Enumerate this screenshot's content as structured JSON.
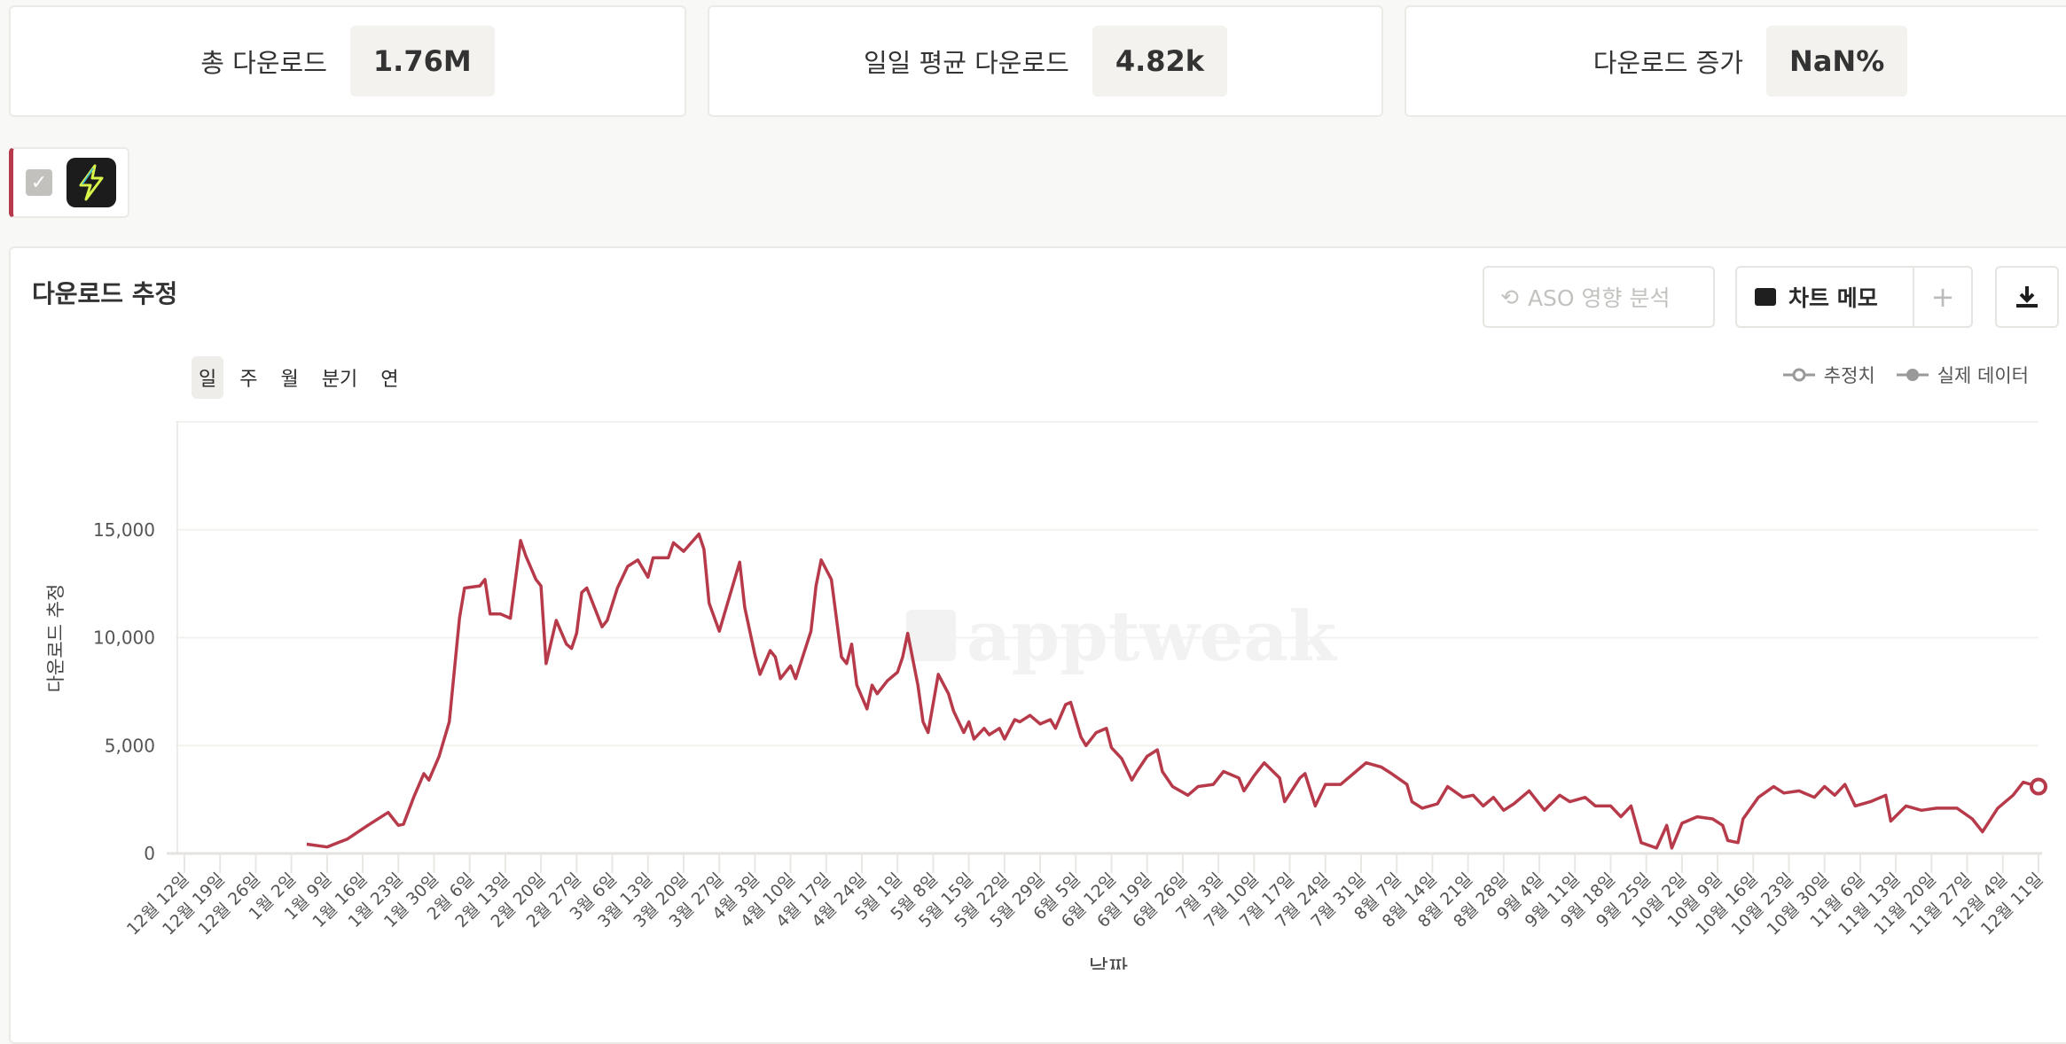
{
  "stats": [
    {
      "label": "총 다운로드",
      "value": "1.76M"
    },
    {
      "label": "일일 평균 다운로드",
      "value": "4.82k"
    },
    {
      "label": "다운로드 증가",
      "value": "NaN%"
    }
  ],
  "app_selector": {
    "checked": true,
    "icon": "lightning-bolt-app-icon",
    "accent": "#b73a4a"
  },
  "chart_card": {
    "title": "다운로드 추정",
    "aso_button": "ASO 영향 분석",
    "memo_button": "차트 메모",
    "add_label": "+",
    "download_icon": "download-icon"
  },
  "period_tabs": [
    {
      "label": "일",
      "active": true
    },
    {
      "label": "주"
    },
    {
      "label": "월"
    },
    {
      "label": "분기"
    },
    {
      "label": "연"
    }
  ],
  "legend": {
    "estimate": "추정치",
    "actual": "실제 데이터"
  },
  "watermark": "apptweak",
  "chart_data": {
    "type": "line",
    "xlabel": "날짜",
    "ylabel": "다운로드 추정",
    "ylim": [
      0,
      20000
    ],
    "yticks": [
      0,
      5000,
      10000,
      15000
    ],
    "ytick_labels": [
      "0",
      "5,000",
      "10,000",
      "15,000"
    ],
    "grid": true,
    "legend_position": "top-right",
    "color": "#b73a4a",
    "xlim": [
      "12-12",
      "12-11"
    ],
    "xtick_labels": [
      "12월 12일",
      "12월 19일",
      "12월 26일",
      "1월 2일",
      "1월 9일",
      "1월 16일",
      "1월 23일",
      "1월 30일",
      "2월 6일",
      "2월 13일",
      "2월 20일",
      "2월 27일",
      "3월 6일",
      "3월 13일",
      "3월 20일",
      "3월 27일",
      "4월 3일",
      "4월 10일",
      "4월 17일",
      "4월 24일",
      "5월 1일",
      "5월 8일",
      "5월 15일",
      "5월 22일",
      "5월 29일",
      "6월 5일",
      "6월 12일",
      "6월 19일",
      "6월 26일",
      "7월 3일",
      "7월 10일",
      "7월 17일",
      "7월 24일",
      "7월 31일",
      "8월 7일",
      "8월 14일",
      "8월 21일",
      "8월 28일",
      "9월 4일",
      "9월 11일",
      "9월 18일",
      "9월 25일",
      "10월 2일",
      "10월 9일",
      "10월 16일",
      "10월 23일",
      "10월 30일",
      "11월 6일",
      "11월 13일",
      "11월 20일",
      "11월 27일",
      "12월 4일",
      "12월 11일"
    ],
    "series": [
      {
        "points": [
          [
            "01-05",
            430
          ],
          [
            "01-09",
            300
          ],
          [
            "01-13",
            670
          ],
          [
            "01-17",
            1300
          ],
          [
            "01-21",
            1900
          ],
          [
            "01-22",
            1600
          ],
          [
            "01-23",
            1300
          ],
          [
            "01-24",
            1350
          ],
          [
            "01-26",
            2600
          ],
          [
            "01-28",
            3700
          ],
          [
            "01-29",
            3400
          ],
          [
            "01-31",
            4500
          ],
          [
            "02-02",
            6100
          ],
          [
            "02-04",
            10900
          ],
          [
            "02-05",
            12300
          ],
          [
            "02-08",
            12400
          ],
          [
            "02-09",
            12700
          ],
          [
            "02-10",
            11100
          ],
          [
            "02-12",
            11100
          ],
          [
            "02-14",
            10900
          ],
          [
            "02-16",
            14500
          ],
          [
            "02-17",
            13800
          ],
          [
            "02-19",
            12700
          ],
          [
            "02-20",
            12400
          ],
          [
            "02-21",
            8800
          ],
          [
            "02-23",
            10800
          ],
          [
            "02-25",
            9700
          ],
          [
            "02-26",
            9500
          ],
          [
            "02-27",
            10200
          ],
          [
            "02-28",
            12100
          ],
          [
            "03-01",
            12300
          ],
          [
            "03-03",
            11100
          ],
          [
            "03-04",
            10500
          ],
          [
            "03-05",
            10800
          ],
          [
            "03-07",
            12300
          ],
          [
            "03-09",
            13300
          ],
          [
            "03-11",
            13600
          ],
          [
            "03-13",
            12800
          ],
          [
            "03-14",
            13700
          ],
          [
            "03-17",
            13700
          ],
          [
            "03-18",
            14400
          ],
          [
            "03-20",
            14000
          ],
          [
            "03-23",
            14800
          ],
          [
            "03-24",
            14100
          ],
          [
            "03-25",
            11600
          ],
          [
            "03-27",
            10300
          ],
          [
            "03-29",
            11900
          ],
          [
            "03-31",
            13500
          ],
          [
            "04-01",
            11400
          ],
          [
            "04-03",
            9200
          ],
          [
            "04-04",
            8300
          ],
          [
            "04-06",
            9400
          ],
          [
            "04-07",
            9100
          ],
          [
            "04-08",
            8100
          ],
          [
            "04-10",
            8700
          ],
          [
            "04-11",
            8100
          ],
          [
            "04-14",
            10300
          ],
          [
            "04-15",
            12400
          ],
          [
            "04-16",
            13600
          ],
          [
            "04-18",
            12700
          ],
          [
            "04-20",
            9100
          ],
          [
            "04-21",
            8800
          ],
          [
            "04-22",
            9700
          ],
          [
            "04-23",
            7800
          ],
          [
            "04-25",
            6700
          ],
          [
            "04-26",
            7800
          ],
          [
            "04-27",
            7400
          ],
          [
            "04-29",
            8000
          ],
          [
            "05-01",
            8400
          ],
          [
            "05-02",
            9100
          ],
          [
            "05-03",
            10200
          ],
          [
            "05-05",
            7800
          ],
          [
            "05-06",
            6100
          ],
          [
            "05-07",
            5600
          ],
          [
            "05-09",
            8300
          ],
          [
            "05-11",
            7400
          ],
          [
            "05-12",
            6600
          ],
          [
            "05-14",
            5600
          ],
          [
            "05-15",
            6100
          ],
          [
            "05-16",
            5300
          ],
          [
            "05-18",
            5800
          ],
          [
            "05-19",
            5500
          ],
          [
            "05-21",
            5800
          ],
          [
            "05-22",
            5300
          ],
          [
            "05-24",
            6200
          ],
          [
            "05-25",
            6100
          ],
          [
            "05-27",
            6400
          ],
          [
            "05-29",
            6000
          ],
          [
            "05-31",
            6200
          ],
          [
            "06-01",
            5800
          ],
          [
            "06-03",
            6900
          ],
          [
            "06-04",
            7000
          ],
          [
            "06-06",
            5400
          ],
          [
            "06-07",
            5000
          ],
          [
            "06-09",
            5600
          ],
          [
            "06-11",
            5800
          ],
          [
            "06-12",
            4900
          ],
          [
            "06-14",
            4400
          ],
          [
            "06-16",
            3400
          ],
          [
            "06-17",
            3800
          ],
          [
            "06-19",
            4500
          ],
          [
            "06-21",
            4800
          ],
          [
            "06-22",
            3800
          ],
          [
            "06-24",
            3100
          ],
          [
            "06-27",
            2700
          ],
          [
            "06-29",
            3100
          ],
          [
            "07-02",
            3200
          ],
          [
            "07-04",
            3800
          ],
          [
            "07-07",
            3500
          ],
          [
            "07-08",
            2900
          ],
          [
            "07-10",
            3600
          ],
          [
            "07-12",
            4200
          ],
          [
            "07-15",
            3500
          ],
          [
            "07-16",
            2400
          ],
          [
            "07-19",
            3500
          ],
          [
            "07-20",
            3700
          ],
          [
            "07-22",
            2200
          ],
          [
            "07-24",
            3200
          ],
          [
            "07-27",
            3200
          ],
          [
            "07-30",
            3800
          ],
          [
            "08-01",
            4200
          ],
          [
            "08-04",
            4000
          ],
          [
            "08-06",
            3700
          ],
          [
            "08-09",
            3200
          ],
          [
            "08-10",
            2400
          ],
          [
            "08-12",
            2100
          ],
          [
            "08-15",
            2300
          ],
          [
            "08-17",
            3100
          ],
          [
            "08-20",
            2600
          ],
          [
            "08-22",
            2700
          ],
          [
            "08-24",
            2200
          ],
          [
            "08-26",
            2600
          ],
          [
            "08-28",
            2000
          ],
          [
            "08-30",
            2300
          ],
          [
            "09-02",
            2900
          ],
          [
            "09-03",
            2600
          ],
          [
            "09-05",
            2000
          ],
          [
            "09-08",
            2700
          ],
          [
            "09-10",
            2400
          ],
          [
            "09-13",
            2600
          ],
          [
            "09-15",
            2200
          ],
          [
            "09-18",
            2200
          ],
          [
            "09-20",
            1700
          ],
          [
            "09-22",
            2200
          ],
          [
            "09-24",
            500
          ],
          [
            "09-27",
            250
          ],
          [
            "09-29",
            1300
          ],
          [
            "09-30",
            250
          ],
          [
            "10-02",
            1400
          ],
          [
            "10-05",
            1700
          ],
          [
            "10-08",
            1600
          ],
          [
            "10-10",
            1300
          ],
          [
            "10-11",
            600
          ],
          [
            "10-13",
            500
          ],
          [
            "10-14",
            1600
          ],
          [
            "10-17",
            2600
          ],
          [
            "10-20",
            3100
          ],
          [
            "10-22",
            2800
          ],
          [
            "10-25",
            2900
          ],
          [
            "10-28",
            2600
          ],
          [
            "10-30",
            3100
          ],
          [
            "11-01",
            2700
          ],
          [
            "11-03",
            3200
          ],
          [
            "11-05",
            2200
          ],
          [
            "11-08",
            2400
          ],
          [
            "11-11",
            2700
          ],
          [
            "11-12",
            1500
          ],
          [
            "11-15",
            2200
          ],
          [
            "11-18",
            2000
          ],
          [
            "11-21",
            2100
          ],
          [
            "11-25",
            2100
          ],
          [
            "11-28",
            1600
          ],
          [
            "11-30",
            1000
          ],
          [
            "12-03",
            2100
          ],
          [
            "12-06",
            2700
          ],
          [
            "12-08",
            3300
          ],
          [
            "12-11",
            3100
          ]
        ]
      }
    ]
  }
}
